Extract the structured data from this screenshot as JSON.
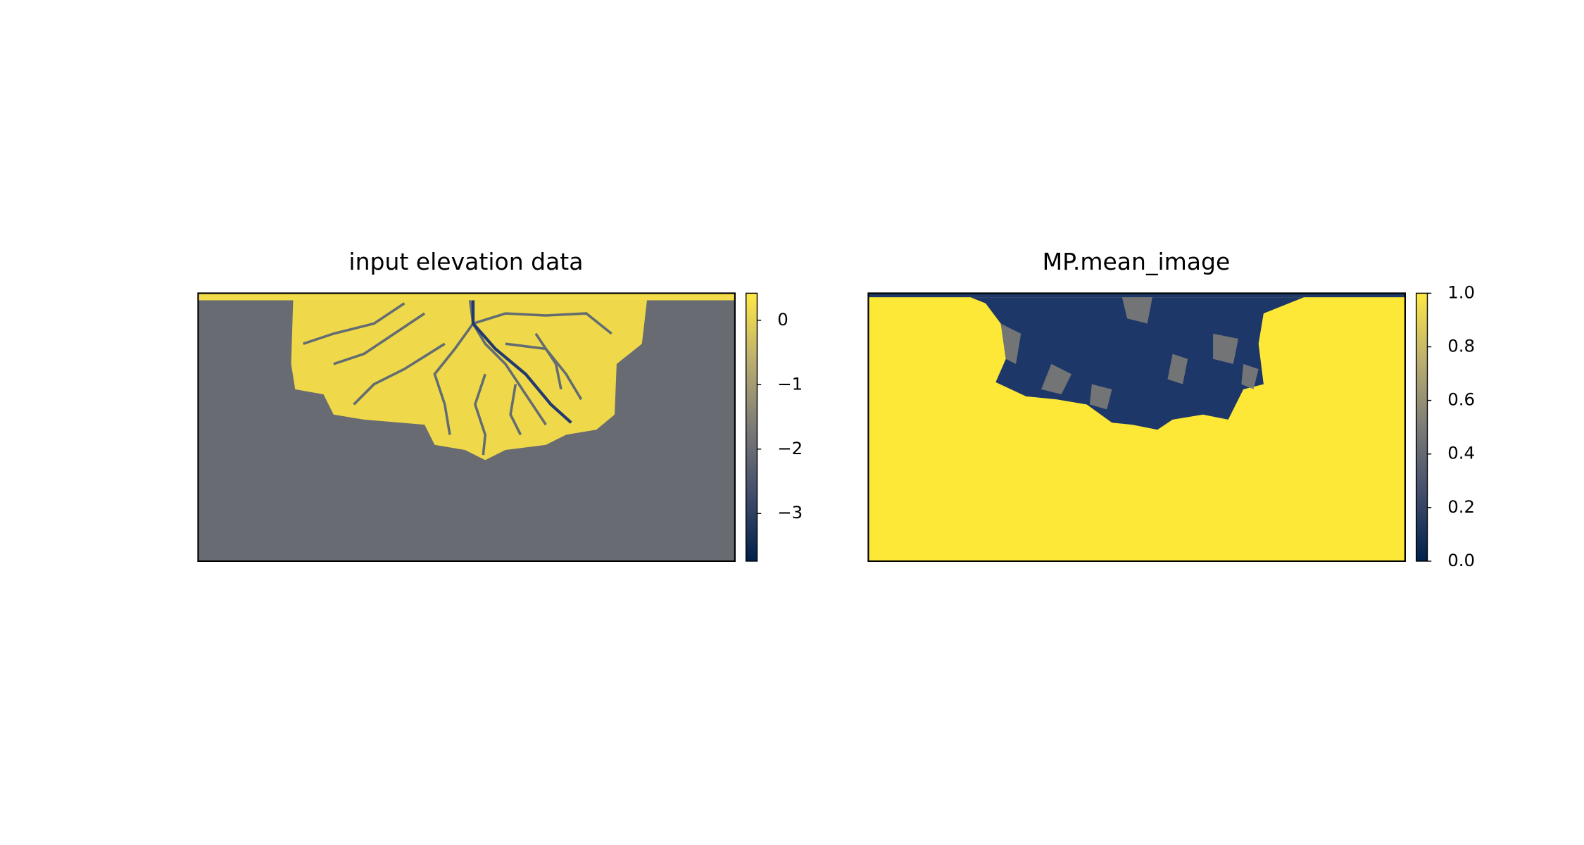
{
  "chart_data": [
    {
      "type": "heatmap",
      "title": "input elevation data",
      "colormap": "cividis",
      "ylim": [
        -3.74,
        0.42
      ],
      "yticks": [
        {
          "value": 0,
          "label": "0"
        },
        {
          "value": -1,
          "label": "−1"
        },
        {
          "value": -2,
          "label": "−2"
        },
        {
          "value": -3,
          "label": "−3"
        }
      ]
    },
    {
      "type": "heatmap",
      "title": "MP.mean_image",
      "colormap": "cividis",
      "ylim": [
        0,
        1
      ],
      "yticks": [
        {
          "value": 0,
          "label": "0.0"
        },
        0.2,
        0.4,
        0.6,
        0.8,
        {
          "value": 1,
          "label": "1.0"
        }
      ]
    }
  ]
}
